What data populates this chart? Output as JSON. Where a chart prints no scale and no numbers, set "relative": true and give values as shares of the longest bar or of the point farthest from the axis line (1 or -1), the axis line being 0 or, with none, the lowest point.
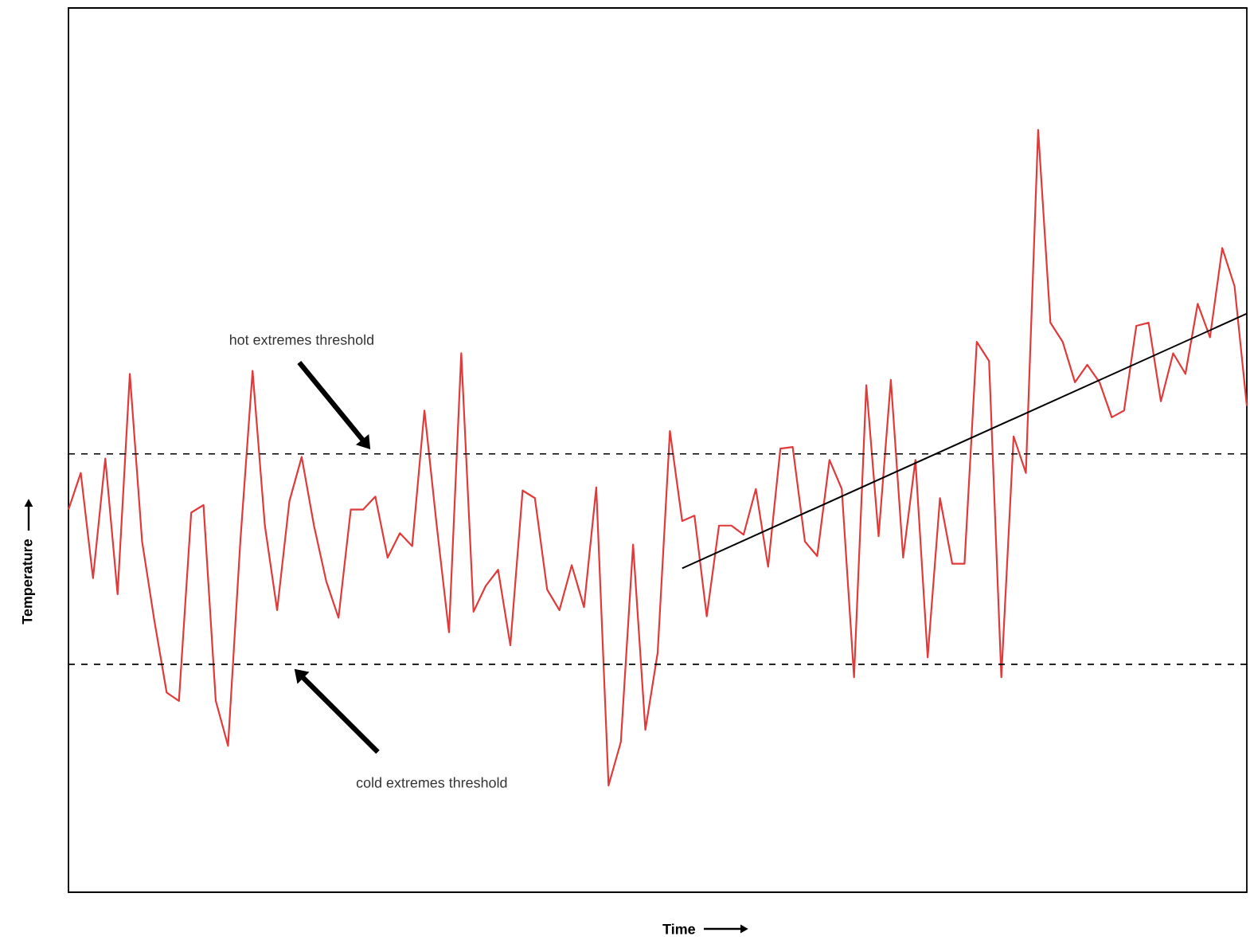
{
  "chart_data": {
    "type": "line",
    "relative": true,
    "tick_labels": false,
    "xlabel": "Time",
    "ylabel": "Temperature",
    "categories": [
      null,
      null,
      null,
      null,
      null,
      null,
      null,
      null,
      null,
      null,
      null,
      null,
      null,
      null,
      null,
      null,
      null,
      null,
      null,
      null,
      null,
      null,
      null,
      null,
      null,
      null,
      null,
      null,
      null,
      null,
      null,
      null,
      null,
      null,
      null,
      null,
      null,
      null,
      null,
      null,
      null,
      null,
      null,
      null,
      null,
      null,
      null,
      null,
      null,
      null,
      null,
      null,
      null,
      null,
      null,
      null,
      null,
      null,
      null,
      null,
      null,
      null,
      null,
      null,
      null,
      null,
      null,
      null,
      null,
      null,
      null,
      null,
      null,
      null,
      null,
      null,
      null,
      null,
      null,
      null,
      null,
      null,
      null,
      null,
      null,
      null,
      null,
      null,
      null,
      null,
      null,
      null,
      null,
      null,
      null,
      null,
      null
    ],
    "series": [
      {
        "color": "#e03a3a",
        "values": [
          0.502,
          0.55,
          0.412,
          0.569,
          0.391,
          0.68,
          0.46,
          0.356,
          0.262,
          0.251,
          0.498,
          0.508,
          0.251,
          0.192,
          0.46,
          0.684,
          0.481,
          0.37,
          0.513,
          0.571,
          0.481,
          0.408,
          0.36,
          0.502,
          0.502,
          0.519,
          0.439,
          0.471,
          0.454,
          0.632,
          0.481,
          0.341,
          0.707,
          0.368,
          0.402,
          0.423,
          0.324,
          0.527,
          0.517,
          0.397,
          0.37,
          0.429,
          0.374,
          0.531,
          0.14,
          0.197,
          0.456,
          0.213,
          0.314,
          0.605,
          0.487,
          0.494,
          0.362,
          0.481,
          0.481,
          0.469,
          0.529,
          0.427,
          0.582,
          0.584,
          0.46,
          0.441,
          0.567,
          0.529,
          0.282,
          0.665,
          0.467,
          0.672,
          0.439,
          0.567,
          0.308,
          0.517,
          0.431,
          0.431,
          0.722,
          0.697,
          0.282,
          0.598,
          0.55,
          1.0,
          0.747,
          0.722,
          0.669,
          0.692,
          0.669,
          0.623,
          0.632,
          0.743,
          0.747,
          0.644,
          0.707,
          0.68,
          0.772,
          0.728,
          0.845,
          0.795,
          0.638
        ]
      },
      {
        "type": "line",
        "color": "#000000",
        "values": [
          null,
          null,
          null,
          null,
          null,
          null,
          null,
          null,
          null,
          null,
          null,
          null,
          null,
          null,
          null,
          null,
          null,
          null,
          null,
          null,
          null,
          null,
          null,
          null,
          null,
          null,
          null,
          null,
          null,
          null,
          null,
          null,
          null,
          null,
          null,
          null,
          null,
          null,
          null,
          null,
          null,
          null,
          null,
          null,
          null,
          null,
          null,
          null,
          null,
          null,
          0.425,
          null,
          null,
          null,
          null,
          null,
          null,
          null,
          null,
          null,
          null,
          null,
          null,
          null,
          null,
          null,
          null,
          null,
          null,
          null,
          null,
          null,
          null,
          null,
          null,
          null,
          null,
          null,
          null,
          null,
          null,
          null,
          null,
          null,
          null,
          null,
          null,
          null,
          null,
          null,
          null,
          null,
          null,
          null,
          null,
          null,
          0.759
        ]
      }
    ],
    "ref_lines": [
      {
        "axis": "y",
        "value": 0.575,
        "line_style": "dashed",
        "color": "#000000"
      },
      {
        "axis": "y",
        "value": 0.299,
        "line_style": "dashed",
        "color": "#000000"
      }
    ],
    "annotations": [
      "hot extremes threshold",
      "cold extremes threshold"
    ]
  }
}
